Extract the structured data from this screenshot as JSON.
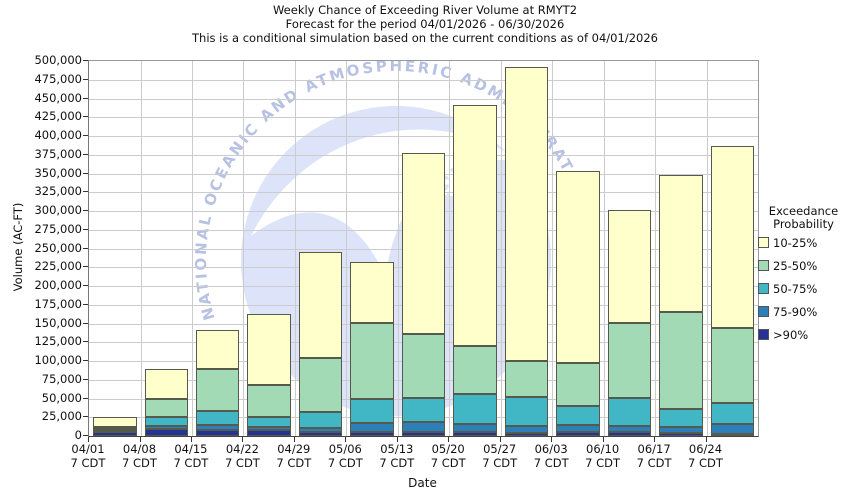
{
  "title": {
    "line1": "Weekly Chance of Exceeding River Volume at RMYT2",
    "line2": "Forecast for the period 04/01/2026 - 06/30/2026",
    "line3": "This is a conditional simulation based on the current conditions as of 04/01/2026"
  },
  "y_axis": {
    "label": "Volume (AC-FT)",
    "min": 0,
    "max": 500000,
    "tick_step": 25000
  },
  "x_axis": {
    "label": "Date",
    "tick_sub_label": "7 CDT"
  },
  "legend": {
    "title_line1": "Exceedance",
    "title_line2": "Probability",
    "items": [
      {
        "label": "10-25%",
        "color": "#FFFFCC"
      },
      {
        "label": "25-50%",
        "color": "#A1DAB4"
      },
      {
        "label": "50-75%",
        "color": "#41B6C4"
      },
      {
        "label": "75-90%",
        "color": "#2C7FB8"
      },
      {
        "label": ">90%",
        "color": "#253494"
      }
    ]
  },
  "watermark": {
    "org": "noaa",
    "arc_text": "NATIONAL OCEANIC AND ATMOSPHERIC ADMINISTRATION",
    "circle_color": "#dde3f8",
    "text_color": "#b7c1e3"
  },
  "colors": {
    "gridline": "#cccccc",
    "segment_border": "#565a4c",
    "axis": "#555555"
  },
  "chart_data": {
    "type": "bar",
    "stacked": true,
    "title": "Weekly Chance of Exceeding River Volume at RMYT2",
    "xlabel": "Date",
    "ylabel": "Volume (AC-FT)",
    "ylim": [
      0,
      500000
    ],
    "ytick_step": 25000,
    "grid": true,
    "legend_position": "right",
    "categories": [
      "04/01",
      "04/08",
      "04/15",
      "04/22",
      "04/29",
      "05/06",
      "05/13",
      "05/20",
      "05/27",
      "06/03",
      "06/10",
      "06/17",
      "06/24"
    ],
    "category_sub_label": "7 CDT",
    "series": [
      {
        "name": ">90%",
        "color": "#253494",
        "values": [
          6000,
          10000,
          8000,
          7500,
          6000,
          6000,
          6000,
          5000,
          4000,
          5000,
          5000,
          4000,
          2500
        ]
      },
      {
        "name": "75-90%",
        "color": "#2C7FB8",
        "values": [
          1500,
          3000,
          7000,
          5000,
          5000,
          12000,
          13000,
          11500,
          9500,
          10000,
          9000,
          8000,
          13000
        ]
      },
      {
        "name": "50-75%",
        "color": "#41B6C4",
        "values": [
          1500,
          13000,
          18500,
          13500,
          21500,
          32000,
          32000,
          39000,
          39000,
          25000,
          36500,
          23500,
          28500
        ]
      },
      {
        "name": "25-50%",
        "color": "#A1DAB4",
        "values": [
          2500,
          23000,
          55500,
          42000,
          71500,
          101000,
          85000,
          64500,
          47500,
          58000,
          100500,
          130500,
          100000
        ]
      },
      {
        "name": "10-25%",
        "color": "#FFFFCC",
        "values": [
          14500,
          41000,
          52000,
          95000,
          142000,
          81000,
          241000,
          322000,
          392000,
          255000,
          150000,
          182000,
          243000
        ]
      }
    ],
    "bar_totals": [
      26000,
      90000,
      141000,
      163000,
      246000,
      232000,
      377000,
      442000,
      492000,
      353000,
      301000,
      348000,
      387000
    ]
  }
}
